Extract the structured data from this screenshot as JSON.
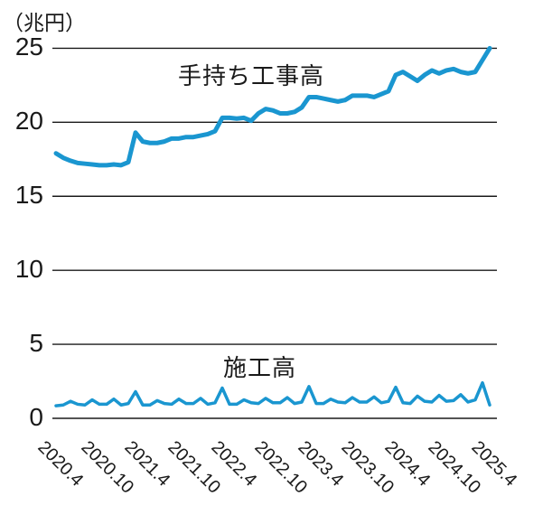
{
  "chart_data": {
    "type": "line",
    "unit_label": "（兆円）",
    "ylabel": "兆円",
    "ylim": [
      0,
      25
    ],
    "y_ticks": [
      0,
      5,
      10,
      15,
      20,
      25
    ],
    "grid": "horizontal",
    "legend_position": "inline-labels",
    "x_tick_labels": [
      "2020.4",
      "2020.10",
      "2021.4",
      "2021.10",
      "2022.4",
      "2022.10",
      "2023.4",
      "2023.10",
      "2024.4",
      "2024.10",
      "2025.4"
    ],
    "x_tick_month_index": [
      0,
      6,
      12,
      18,
      24,
      30,
      36,
      42,
      48,
      54,
      60
    ],
    "x": [
      "2020.4",
      "2020.5",
      "2020.6",
      "2020.7",
      "2020.8",
      "2020.9",
      "2020.10",
      "2020.11",
      "2020.12",
      "2021.1",
      "2021.2",
      "2021.3",
      "2021.4",
      "2021.5",
      "2021.6",
      "2021.7",
      "2021.8",
      "2021.9",
      "2021.10",
      "2021.11",
      "2021.12",
      "2022.1",
      "2022.2",
      "2022.3",
      "2022.4",
      "2022.5",
      "2022.6",
      "2022.7",
      "2022.8",
      "2022.9",
      "2022.10",
      "2022.11",
      "2022.12",
      "2023.1",
      "2023.2",
      "2023.3",
      "2023.4",
      "2023.5",
      "2023.6",
      "2023.7",
      "2023.8",
      "2023.9",
      "2023.10",
      "2023.11",
      "2023.12",
      "2024.1",
      "2024.2",
      "2024.3",
      "2024.4",
      "2024.5",
      "2024.6",
      "2024.7",
      "2024.8",
      "2024.9",
      "2024.10",
      "2024.11",
      "2024.12",
      "2025.1",
      "2025.2",
      "2025.3",
      "2025.4"
    ],
    "series": [
      {
        "name": "手持ち工事高",
        "color": "#1a96d0",
        "stroke_width": 5,
        "values": [
          17.9,
          17.6,
          17.4,
          17.25,
          17.2,
          17.15,
          17.1,
          17.1,
          17.15,
          17.1,
          17.3,
          19.3,
          18.7,
          18.6,
          18.6,
          18.7,
          18.9,
          18.9,
          19.0,
          19.0,
          19.1,
          19.2,
          19.4,
          20.3,
          20.3,
          20.25,
          20.3,
          20.1,
          20.6,
          20.9,
          20.8,
          20.6,
          20.6,
          20.7,
          21.0,
          21.7,
          21.7,
          21.6,
          21.5,
          21.4,
          21.5,
          21.8,
          21.8,
          21.8,
          21.7,
          21.9,
          22.1,
          23.2,
          23.4,
          23.1,
          22.8,
          23.2,
          23.5,
          23.3,
          23.5,
          23.6,
          23.4,
          23.3,
          23.4,
          24.2,
          25.0
        ]
      },
      {
        "name": "施工高",
        "color": "#1a96d0",
        "stroke_width": 3.5,
        "values": [
          0.85,
          0.9,
          1.15,
          0.95,
          0.9,
          1.25,
          0.95,
          0.95,
          1.3,
          0.9,
          1.0,
          1.8,
          0.9,
          0.9,
          1.2,
          1.0,
          0.95,
          1.3,
          1.0,
          1.0,
          1.35,
          0.95,
          1.05,
          2.05,
          0.95,
          0.95,
          1.25,
          1.05,
          1.0,
          1.35,
          1.05,
          1.05,
          1.4,
          1.0,
          1.1,
          2.15,
          1.0,
          1.0,
          1.3,
          1.1,
          1.05,
          1.4,
          1.1,
          1.1,
          1.45,
          1.05,
          1.15,
          2.1,
          1.05,
          1.0,
          1.5,
          1.15,
          1.1,
          1.55,
          1.15,
          1.2,
          1.6,
          1.1,
          1.25,
          2.4,
          0.9
        ]
      }
    ],
    "colors": {
      "line": "#1a96d0",
      "grid": "#1a1a1a",
      "text": "#1a1a1a",
      "background": "#ffffff"
    }
  }
}
